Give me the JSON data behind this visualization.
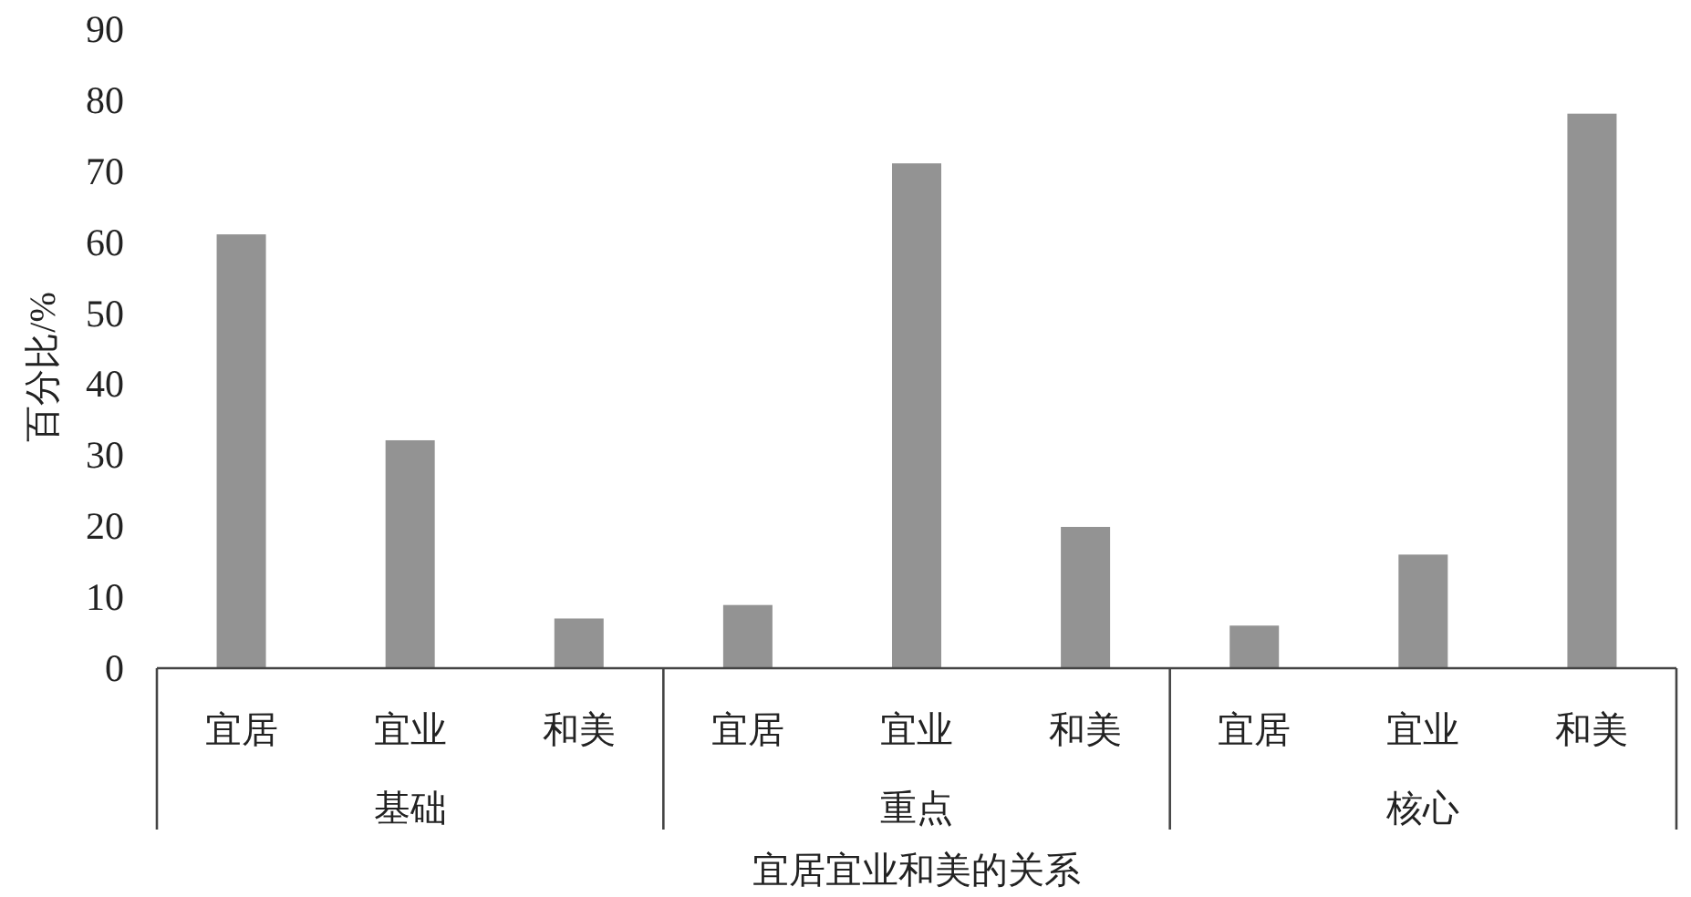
{
  "chart_data": {
    "type": "bar",
    "ylabel": "百分比/%",
    "xlabel": "宜居宜业和美的关系",
    "categories": [
      "宜居",
      "宜业",
      "和美",
      "宜居",
      "宜业",
      "和美",
      "宜居",
      "宜业",
      "和美"
    ],
    "values": [
      61.1,
      32.1,
      7.0,
      8.9,
      71.1,
      19.9,
      6.0,
      16.0,
      78.1
    ],
    "color": "#939393",
    "ylim": [
      0,
      90
    ],
    "yticks": [
      0,
      10,
      20,
      30,
      40,
      50,
      60,
      70,
      80,
      90
    ],
    "annotations": [
      "基础",
      "重点",
      "核心"
    ]
  }
}
